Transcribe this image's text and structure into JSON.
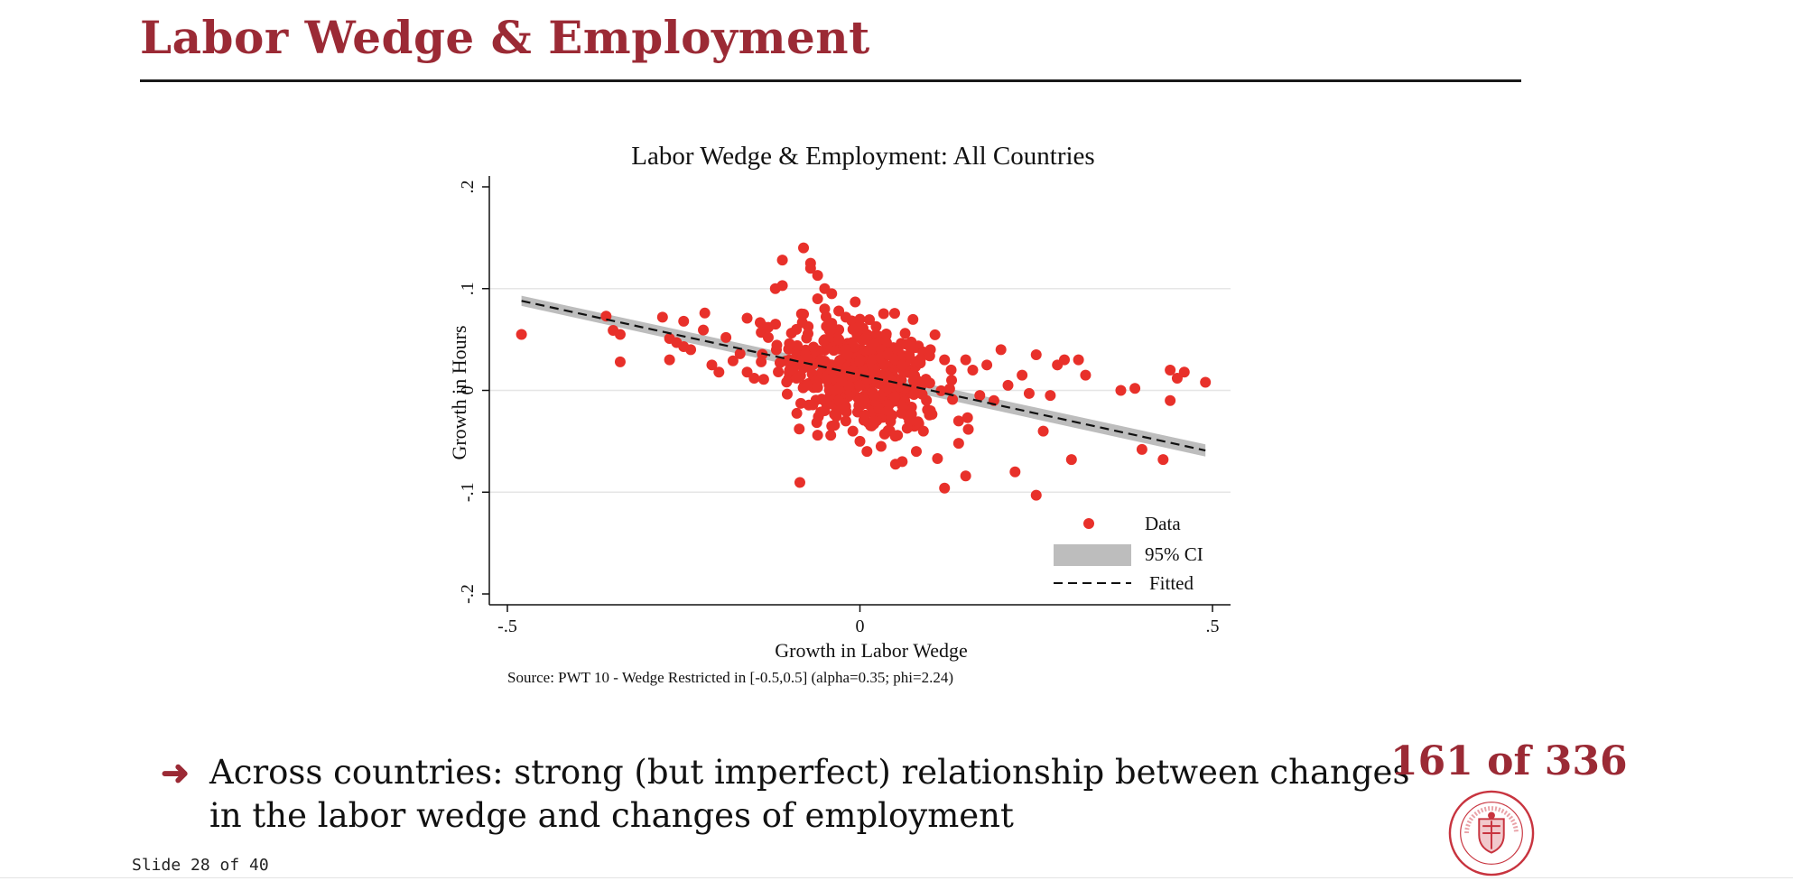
{
  "slide": {
    "title": "Labor Wedge & Employment",
    "bullet_arrow": "➜",
    "bullet_text": "Across countries: strong (but imperfect) relationship between changes in the labor wedge and changes of employment",
    "page_counter": "161 of 336",
    "footer": "Slide 28 of 40"
  },
  "colors": {
    "title": "#9b2a35",
    "data_points": "#e8302a",
    "ci_band": "#bdbdbd",
    "fitted": "#111111",
    "grid": "#e6e6e6"
  },
  "chart_data": {
    "type": "scatter",
    "title": "Labor Wedge & Employment: All Countries",
    "xlabel": "Growth in Labor Wedge",
    "ylabel": "Growth in Hours",
    "xlim": [
      -0.5,
      0.5
    ],
    "ylim": [
      -0.2,
      0.2
    ],
    "xticks": [
      -0.5,
      0,
      0.5
    ],
    "xtick_labels": [
      "-.5",
      "0",
      ".5"
    ],
    "yticks": [
      -0.2,
      -0.1,
      0,
      0.1,
      0.2
    ],
    "ytick_labels": [
      "-.2",
      "-.1",
      "0",
      ".1",
      ".2"
    ],
    "grid": true,
    "legend": {
      "position": "bottom-right",
      "entries": [
        "Data",
        "95% CI",
        "Fitted"
      ]
    },
    "source_note": "Source: PWT 10 - Wedge Restricted in [-0.5,0.5] (alpha=0.35; phi=2.24)",
    "fitted_line": {
      "x": [
        -0.48,
        0.49
      ],
      "y": [
        0.088,
        -0.059
      ]
    },
    "ci_band": {
      "x": [
        -0.48,
        0.49
      ],
      "upper": [
        0.093,
        -0.053
      ],
      "lower": [
        0.083,
        -0.065
      ]
    },
    "points": [
      [
        -0.48,
        0.055
      ],
      [
        -0.36,
        0.073
      ],
      [
        -0.35,
        0.059
      ],
      [
        -0.34,
        0.055
      ],
      [
        -0.34,
        0.028
      ],
      [
        -0.28,
        0.072
      ],
      [
        -0.27,
        0.051
      ],
      [
        -0.26,
        0.047
      ],
      [
        -0.25,
        0.043
      ],
      [
        -0.24,
        0.04
      ],
      [
        -0.27,
        0.03
      ],
      [
        -0.25,
        0.068
      ],
      [
        -0.22,
        0.076
      ],
      [
        -0.21,
        0.025
      ],
      [
        -0.2,
        0.018
      ],
      [
        -0.19,
        0.052
      ],
      [
        -0.18,
        0.029
      ],
      [
        -0.17,
        0.036
      ],
      [
        -0.16,
        0.071
      ],
      [
        -0.16,
        0.018
      ],
      [
        -0.15,
        0.012
      ],
      [
        -0.14,
        0.028
      ],
      [
        -0.14,
        0.057
      ],
      [
        -0.13,
        0.052
      ],
      [
        -0.13,
        0.062
      ],
      [
        -0.12,
        0.1
      ],
      [
        -0.11,
        0.128
      ],
      [
        -0.11,
        0.103
      ],
      [
        -0.1,
        0.046
      ],
      [
        -0.1,
        0.03
      ],
      [
        -0.09,
        0.012
      ],
      [
        -0.09,
        0.06
      ],
      [
        -0.08,
        0.14
      ],
      [
        -0.08,
        0.075
      ],
      [
        -0.07,
        0.125
      ],
      [
        -0.07,
        0.12
      ],
      [
        -0.06,
        0.113
      ],
      [
        -0.06,
        0.09
      ],
      [
        -0.06,
        0.003
      ],
      [
        -0.06,
        -0.044
      ],
      [
        -0.05,
        0.1
      ],
      [
        -0.05,
        0.08
      ],
      [
        -0.05,
        -0.02
      ],
      [
        -0.04,
        0.095
      ],
      [
        -0.04,
        0.066
      ],
      [
        -0.04,
        -0.035
      ],
      [
        -0.03,
        0.078
      ],
      [
        -0.03,
        -0.01
      ],
      [
        -0.03,
        0.05
      ],
      [
        -0.02,
        0.072
      ],
      [
        -0.02,
        0.04
      ],
      [
        -0.02,
        -0.03
      ],
      [
        -0.01,
        0.06
      ],
      [
        -0.01,
        0.02
      ],
      [
        -0.01,
        -0.04
      ],
      [
        0.0,
        0.07
      ],
      [
        0.0,
        0.03
      ],
      [
        0.0,
        -0.015
      ],
      [
        0.0,
        -0.05
      ],
      [
        0.01,
        0.05
      ],
      [
        0.01,
        0.01
      ],
      [
        0.01,
        -0.06
      ],
      [
        0.02,
        0.045
      ],
      [
        0.02,
        -0.005
      ],
      [
        0.02,
        -0.03
      ],
      [
        0.03,
        0.04
      ],
      [
        0.03,
        0.015
      ],
      [
        0.03,
        -0.055
      ],
      [
        0.04,
        0.035
      ],
      [
        0.04,
        -0.02
      ],
      [
        0.05,
        0.03
      ],
      [
        0.05,
        -0.045
      ],
      [
        0.06,
        0.025
      ],
      [
        0.06,
        -0.015
      ],
      [
        0.06,
        -0.07
      ],
      [
        0.07,
        0.035
      ],
      [
        0.07,
        -0.03
      ],
      [
        0.08,
        -0.06
      ],
      [
        0.08,
        0.01
      ],
      [
        0.09,
        -0.04
      ],
      [
        0.1,
        0.04
      ],
      [
        0.1,
        -0.02
      ],
      [
        0.11,
        -0.067
      ],
      [
        0.12,
        0.03
      ],
      [
        0.12,
        -0.096
      ],
      [
        0.13,
        0.01
      ],
      [
        0.14,
        -0.03
      ],
      [
        0.14,
        -0.052
      ],
      [
        0.15,
        -0.084
      ],
      [
        0.15,
        0.03
      ],
      [
        0.16,
        0.02
      ],
      [
        0.17,
        -0.005
      ],
      [
        0.18,
        0.025
      ],
      [
        0.19,
        -0.01
      ],
      [
        0.2,
        0.04
      ],
      [
        0.21,
        0.005
      ],
      [
        0.22,
        -0.08
      ],
      [
        0.23,
        0.015
      ],
      [
        0.24,
        -0.003
      ],
      [
        0.25,
        -0.103
      ],
      [
        0.25,
        0.035
      ],
      [
        0.26,
        -0.04
      ],
      [
        0.27,
        -0.005
      ],
      [
        0.28,
        0.025
      ],
      [
        0.29,
        0.03
      ],
      [
        0.3,
        -0.068
      ],
      [
        0.31,
        0.03
      ],
      [
        0.32,
        0.015
      ],
      [
        0.37,
        0.0
      ],
      [
        0.39,
        0.002
      ],
      [
        0.4,
        -0.058
      ],
      [
        0.43,
        -0.068
      ],
      [
        0.44,
        0.02
      ],
      [
        0.44,
        -0.01
      ],
      [
        0.45,
        0.012
      ],
      [
        0.46,
        0.018
      ],
      [
        0.49,
        0.008
      ]
    ],
    "cluster": {
      "center": [
        0.0,
        0.015
      ],
      "spread": [
        0.055,
        0.028
      ],
      "count": 420
    }
  }
}
